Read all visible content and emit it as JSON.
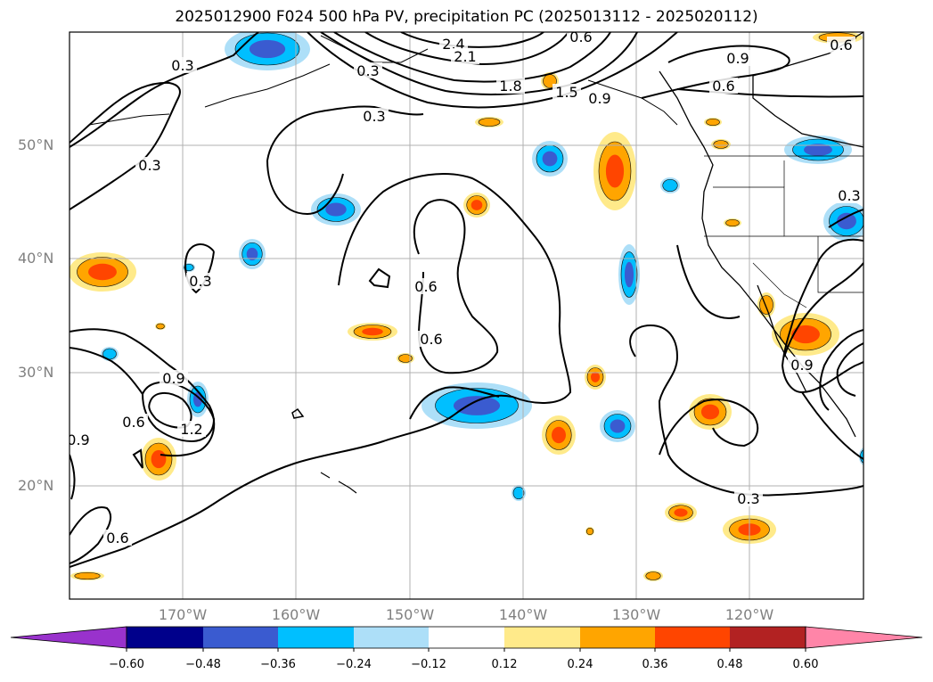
{
  "title": "2025012900 F024 500 hPa PV, precipitation PC (2025013112 - 2025020112)",
  "lat_labels": [
    "50°N",
    "40°N",
    "30°N",
    "20°N"
  ],
  "lon_labels": [
    "170°W",
    "160°W",
    "150°W",
    "140°W",
    "130°W",
    "120°W"
  ],
  "contour_labels": [
    "0.3",
    "0.3",
    "0.3",
    "0.3",
    "0.3",
    "2.4",
    "2.1",
    "1.8",
    "1.5",
    "0.9",
    "0.9",
    "0.6",
    "0.6",
    "0.6",
    "0.6",
    "0.6",
    "0.9",
    "0.9",
    "1.2",
    "0.6",
    "0.6",
    "0.3",
    "0.3",
    "0.9"
  ],
  "colorbar": {
    "ticks": [
      "−0.60",
      "−0.48",
      "−0.36",
      "−0.24",
      "−0.12",
      "0.12",
      "0.24",
      "0.36",
      "0.48",
      "0.60"
    ],
    "colors": [
      "#9932CC",
      "#00008B",
      "#3A5BD0",
      "#00BFFF",
      "#ADDFF8",
      "#FFFFFF",
      "#FFEA8A",
      "#FFA500",
      "#FF4500",
      "#B22222",
      "#FF85A8"
    ]
  },
  "palette": {
    "neg_weak": "#ADDFF8",
    "neg_mid": "#00BFFF",
    "neg_strong": "#3A5BD0",
    "pos_weak": "#FFEA8A",
    "pos_mid": "#FFA500",
    "pos_strong": "#FF4500"
  }
}
